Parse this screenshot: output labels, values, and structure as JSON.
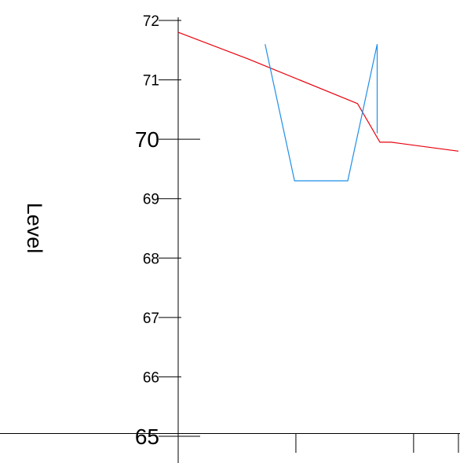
{
  "chart_data": {
    "type": "line",
    "ylabel": "Level",
    "xlabel": "",
    "title": "",
    "ylim": [
      65,
      72
    ],
    "xlim": [
      0,
      100
    ],
    "y_ticks": [
      {
        "value": 72,
        "label": "72",
        "major": false
      },
      {
        "value": 71,
        "label": "71",
        "major": false
      },
      {
        "value": 70,
        "label": "70",
        "major": true
      },
      {
        "value": 69,
        "label": "69",
        "major": false
      },
      {
        "value": 68,
        "label": "68",
        "major": false
      },
      {
        "value": 67,
        "label": "67",
        "major": false
      },
      {
        "value": 66,
        "label": "66",
        "major": false
      },
      {
        "value": 65,
        "label": "65",
        "major": true
      }
    ],
    "x_ticks": [
      0,
      42,
      84,
      100
    ],
    "grid": false,
    "series": [
      {
        "color": "#e8000b",
        "points": [
          [
            0,
            71.8
          ],
          [
            25,
            71.35
          ],
          [
            64,
            70.6
          ],
          [
            72,
            69.95
          ],
          [
            76,
            69.95
          ],
          [
            100,
            69.8
          ]
        ]
      },
      {
        "color": "#1f8fe8",
        "points": [
          [
            31,
            71.6
          ],
          [
            41.5,
            69.3
          ],
          [
            60.5,
            69.3
          ],
          [
            71,
            71.6
          ],
          [
            71,
            70.1
          ]
        ]
      }
    ]
  }
}
